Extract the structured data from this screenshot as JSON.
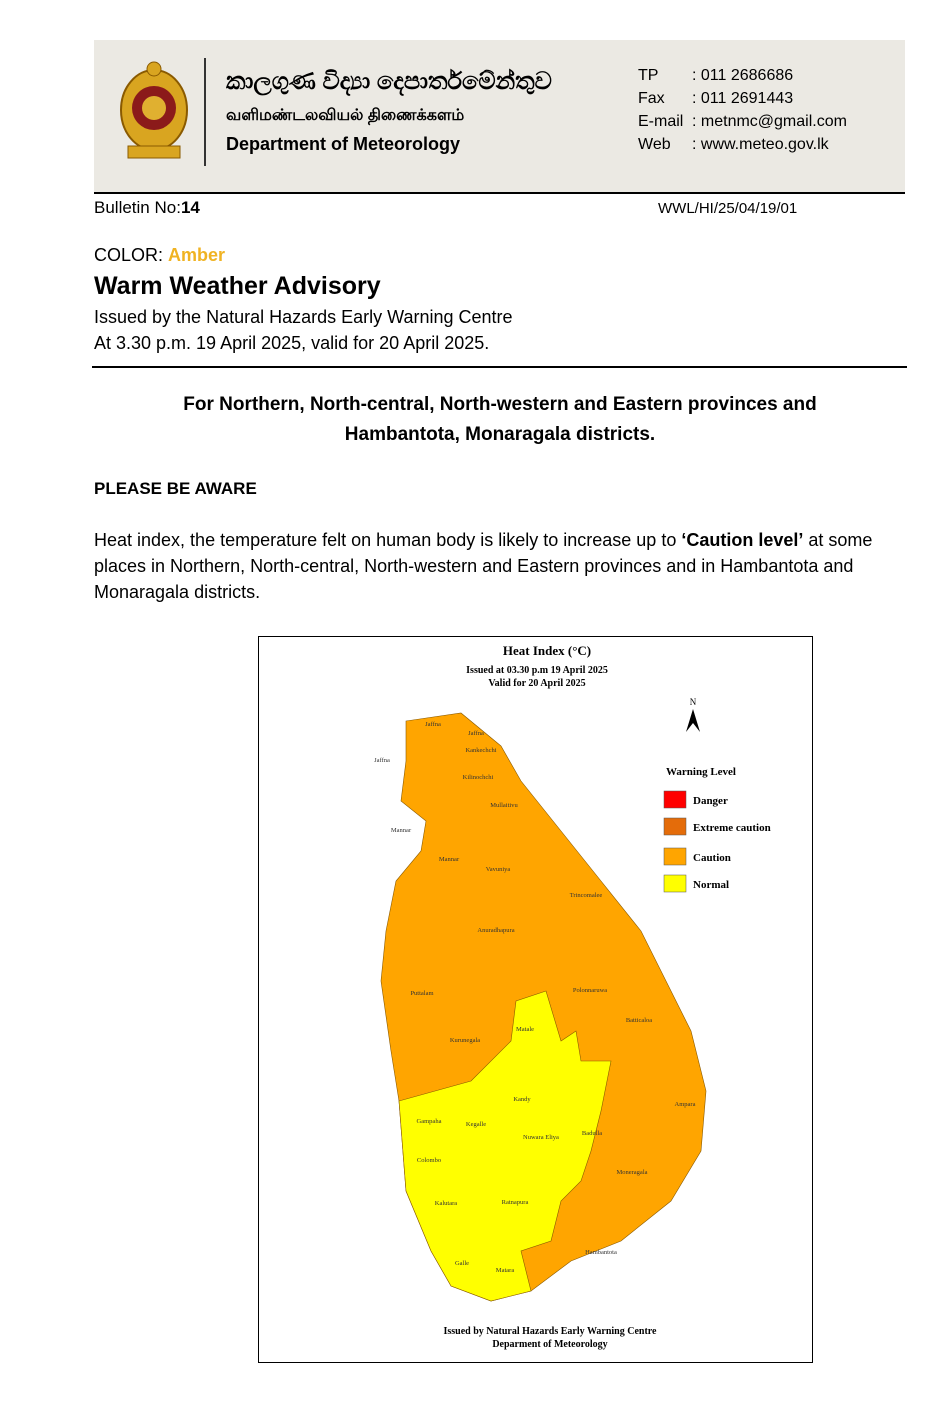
{
  "header": {
    "name_sinhala": "කාලගුණ විද්‍යා දෙපාර්තමේන්තුව",
    "name_tamil": "வளிமண்டலவியல் திணைக்களம்",
    "name_english": "Department of Meteorology",
    "contacts": [
      {
        "label": "TP",
        "value": ": 011 2686686"
      },
      {
        "label": "Fax",
        "value": ": 011 2691443"
      },
      {
        "label": "E-mail",
        "value": ": metnmc@gmail.com"
      },
      {
        "label": "Web",
        "value": ": www.meteo.gov.lk"
      }
    ]
  },
  "bulletin": {
    "label": "Bulletin No:",
    "number": "14",
    "reference": "WWL/HI/25/04/19/01"
  },
  "color": {
    "label": "COLOR:",
    "value": "Amber"
  },
  "title": "Warm Weather Advisory",
  "issued_by": "Issued by the Natural Hazards Early Warning Centre",
  "issued_at": "At 3.30 p.m. 19 April 2025, valid for 20 April 2025.",
  "region": "For Northern, North-central, North-western and Eastern provinces and Hambantota, Monaragala districts.",
  "notice": "PLEASE BE AWARE",
  "body": {
    "before": "Heat index, the temperature felt on human body is likely to increase up to ",
    "emphasis": "‘Caution level’",
    "after": " at some places in Northern, North-central, North-western and Eastern provinces and in Hambantota and Monaragala districts."
  },
  "map": {
    "title": "Heat Index (°C)",
    "issued": "Issued at 03.30 p.m 19 April 2025",
    "valid": "Valid for 20 April 2025",
    "north": "N",
    "legend": {
      "title": "Warning Level",
      "items": [
        {
          "label": "Danger",
          "color": "#ff0000"
        },
        {
          "label": "Extreme caution",
          "color": "#e46c0a"
        },
        {
          "label": "Caution",
          "color": "#ffa500"
        },
        {
          "label": "Normal",
          "color": "#ffff00"
        }
      ]
    },
    "districts": [
      "Jaffna",
      "Jaffna",
      "Kankechchi",
      "Jaffna",
      "Kilinochchi",
      "Mullaitivu",
      "Mannar",
      "Mannar",
      "Vavuniya",
      "Trincomalee",
      "Anuradhapura",
      "Polonnaruwa",
      "Puttalam",
      "Batticaloa",
      "Matale",
      "Kurunegala",
      "Kandy",
      "Ampara",
      "Gampaha",
      "Kegalle",
      "Nuwara Eliya",
      "Badulla",
      "Colombo",
      "Moneragala",
      "Kalutara",
      "Ratnapura",
      "Hambantota",
      "Galle",
      "Matara"
    ],
    "footer_line1": "Issued by Natural Hazards Early Warning Centre",
    "footer_line2": "Deparment of Meteorology"
  }
}
